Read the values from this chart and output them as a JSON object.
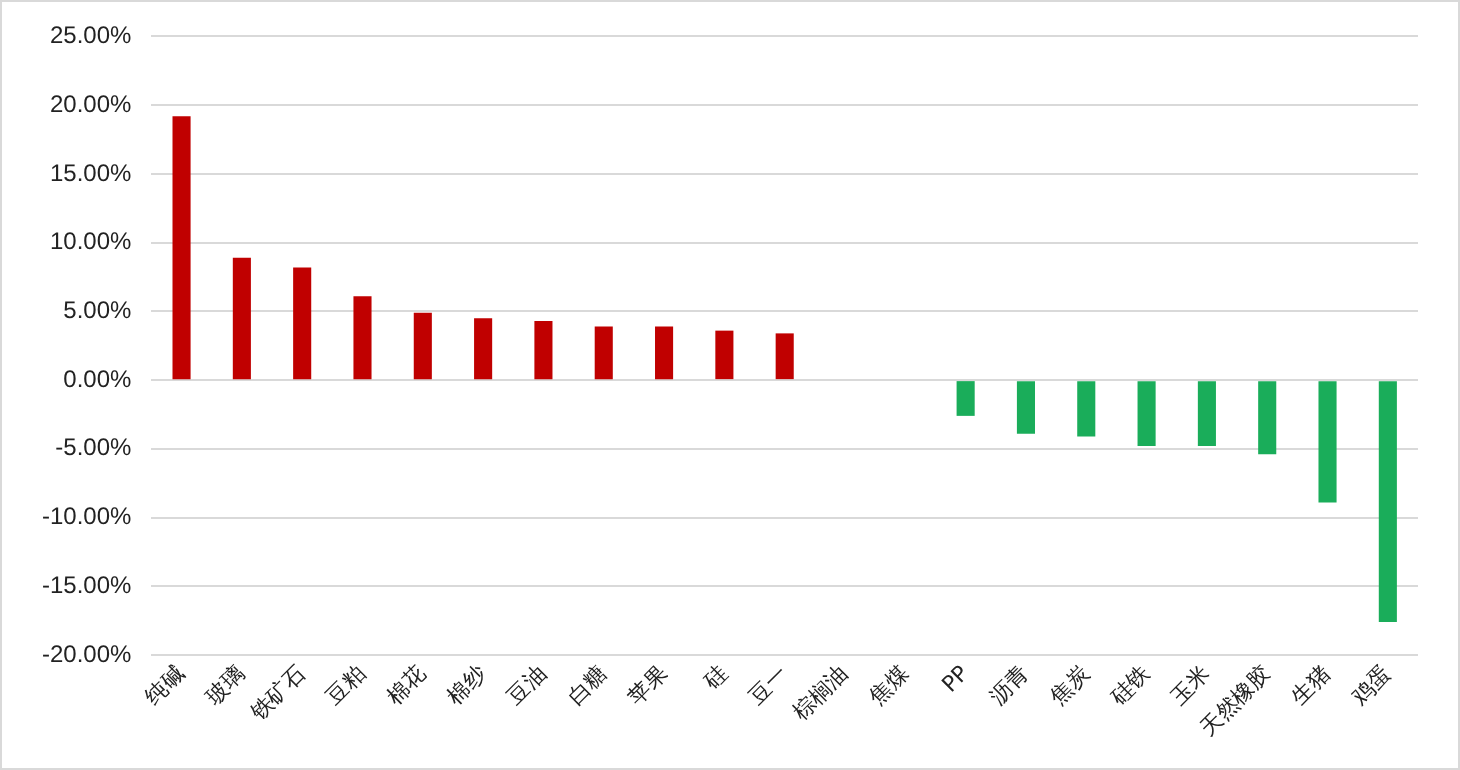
{
  "chart_data": {
    "type": "bar",
    "categories": [
      "纯碱",
      "玻璃",
      "铁矿石",
      "豆粕",
      "棉花",
      "棉纱",
      "豆油",
      "白糖",
      "苹果",
      "硅",
      "豆一",
      "棕榈油",
      "焦煤",
      "PP",
      "沥青",
      "焦炭",
      "硅铁",
      "玉米",
      "天然橡胶",
      "生猪",
      "鸡蛋"
    ],
    "values": [
      19.2,
      8.9,
      8.2,
      6.1,
      4.9,
      4.5,
      4.3,
      3.9,
      3.9,
      3.6,
      3.4,
      null,
      null,
      -2.6,
      -3.9,
      -4.1,
      -4.8,
      -4.8,
      -5.4,
      -8.9,
      -17.6
    ],
    "colors": [
      "#c00000",
      "#c00000",
      "#c00000",
      "#c00000",
      "#c00000",
      "#c00000",
      "#c00000",
      "#c00000",
      "#c00000",
      "#c00000",
      "#c00000",
      "#c00000",
      "#c00000",
      "#1aad5a",
      "#1aad5a",
      "#1aad5a",
      "#1aad5a",
      "#1aad5a",
      "#1aad5a",
      "#1aad5a",
      "#1aad5a"
    ],
    "ylim": [
      -20,
      25
    ],
    "yticks": [
      {
        "value": -20,
        "label": "-20.00%"
      },
      {
        "value": -15,
        "label": "-15.00%"
      },
      {
        "value": -10,
        "label": "-10.00%"
      },
      {
        "value": -5,
        "label": "-5.00%"
      },
      {
        "value": 0,
        "label": "0.00%"
      },
      {
        "value": 5,
        "label": "5.00%"
      },
      {
        "value": 10,
        "label": "10.00%"
      },
      {
        "value": 15,
        "label": "15.00%"
      },
      {
        "value": 20,
        "label": "20.00%"
      },
      {
        "value": 25,
        "label": "25.00%"
      }
    ],
    "grid": "y",
    "legend": false
  }
}
